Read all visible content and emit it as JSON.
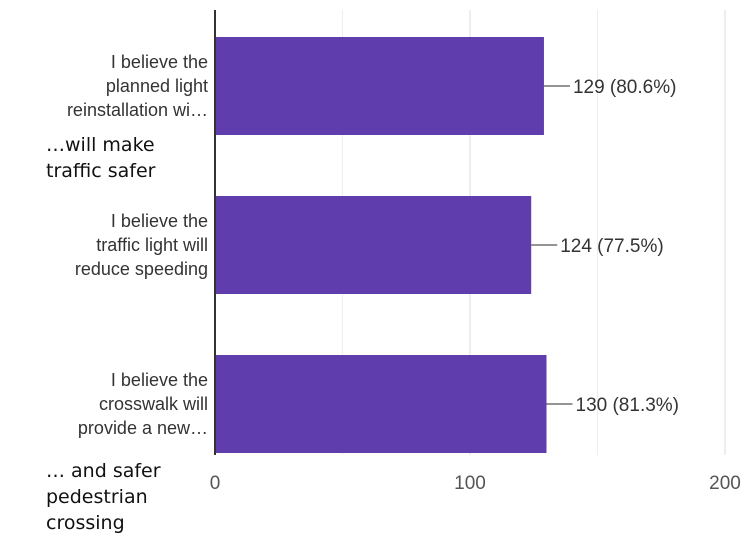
{
  "chart_data": {
    "type": "bar",
    "orientation": "horizontal",
    "categories": [
      [
        "I believe the",
        "planned light",
        "reinstallation wi…"
      ],
      [
        "I believe the",
        "traffic light will",
        "reduce speeding"
      ],
      [
        "I believe the",
        "crosswalk will",
        "provide a new…"
      ]
    ],
    "values": [
      129,
      124,
      130
    ],
    "data_labels": [
      "129 (80.6%)",
      "124 (77.5%)",
      "130 (81.3%)"
    ],
    "xlim": [
      0,
      200
    ],
    "xticks": [
      0,
      100,
      200
    ],
    "grid": true,
    "bar_color": "#5f3dad"
  },
  "annotations": [
    [
      "…will make",
      "traffic safer"
    ],
    [
      "… and safer",
      "pedestrian",
      "crossing"
    ]
  ]
}
